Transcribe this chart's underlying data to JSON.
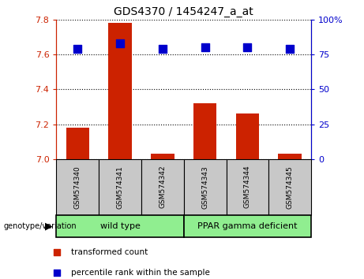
{
  "title": "GDS4370 / 1454247_a_at",
  "samples": [
    "GSM574340",
    "GSM574341",
    "GSM574342",
    "GSM574343",
    "GSM574344",
    "GSM574345"
  ],
  "transformed_counts": [
    7.18,
    7.78,
    7.03,
    7.32,
    7.26,
    7.03
  ],
  "percentile_ranks": [
    79,
    83,
    79,
    80,
    80,
    79
  ],
  "ylim_left": [
    7.0,
    7.8
  ],
  "ylim_right": [
    0,
    100
  ],
  "yticks_left": [
    7.0,
    7.2,
    7.4,
    7.6,
    7.8
  ],
  "yticks_right": [
    0,
    25,
    50,
    75,
    100
  ],
  "bar_color": "#cc2200",
  "marker_color": "#0000cc",
  "marker_size": 42,
  "bar_width": 0.55,
  "grid_color": "black",
  "background_label": "#c8c8c8",
  "background_group": "#90EE90",
  "left_axis_color": "#cc2200",
  "right_axis_color": "#0000cc",
  "legend_items": [
    "transformed count",
    "percentile rank within the sample"
  ],
  "genotype_label": "genotype/variation",
  "group_label_wt": "wild type",
  "group_label_ppar": "PPAR gamma deficient",
  "n_wt": 3,
  "n_ppar": 3
}
